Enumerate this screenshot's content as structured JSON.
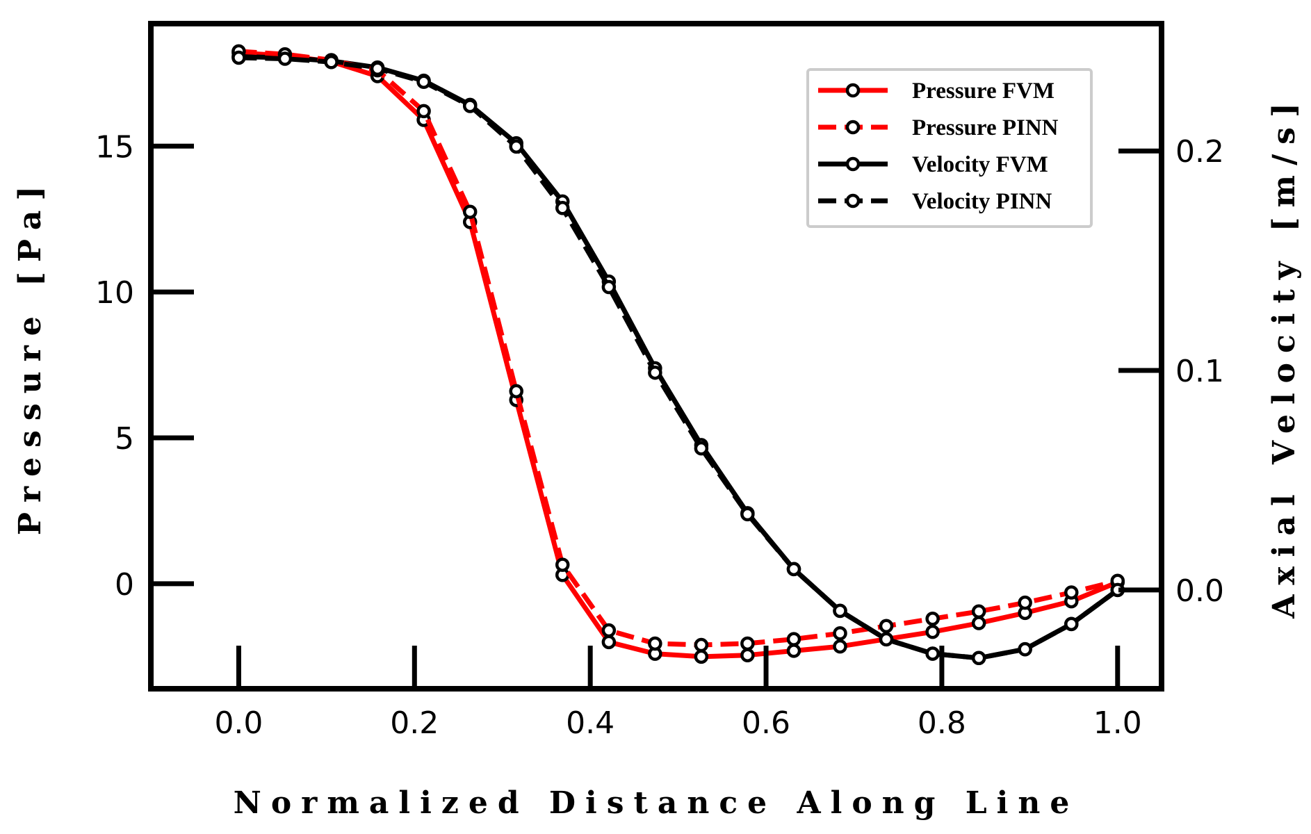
{
  "chart_data": {
    "type": "line",
    "xlabel": "Normalized Distance Along Line",
    "ylabel_left": "Pressure [Pa]",
    "ylabel_right": "Axial Velocity [m/s]",
    "xlim": [
      -0.1,
      1.05
    ],
    "ylim_left": [
      -3.6,
      19.2
    ],
    "ylim_right": [
      -0.045,
      0.258
    ],
    "x_ticks": [
      0.0,
      0.2,
      0.4,
      0.6,
      0.8,
      1.0
    ],
    "x_tick_labels": [
      "0.0",
      "0.2",
      "0.4",
      "0.6",
      "0.8",
      "1.0"
    ],
    "y_left_ticks": [
      0,
      5,
      10,
      15
    ],
    "y_left_tick_labels": [
      "0",
      "5",
      "10",
      "15"
    ],
    "y_right_ticks": [
      0.0,
      0.1,
      0.2
    ],
    "y_right_tick_labels": [
      "0.0",
      "0.1",
      "0.2"
    ],
    "grid": false,
    "legend_position": "top-right",
    "x": [
      0.0,
      0.0526,
      0.1053,
      0.1579,
      0.2105,
      0.2632,
      0.3158,
      0.3684,
      0.4211,
      0.4737,
      0.5263,
      0.5789,
      0.6316,
      0.6842,
      0.7368,
      0.7895,
      0.8421,
      0.8947,
      0.9474,
      1.0
    ],
    "series": [
      {
        "name": "Pressure FVM",
        "axis": "left",
        "color": "#ff0000",
        "dash": "solid",
        "values": [
          18.2,
          18.1,
          17.9,
          17.4,
          15.9,
          12.4,
          6.3,
          0.3,
          -2.0,
          -2.4,
          -2.5,
          -2.45,
          -2.3,
          -2.15,
          -1.9,
          -1.65,
          -1.35,
          -1.0,
          -0.6,
          0.05
        ]
      },
      {
        "name": "Pressure PINN",
        "axis": "left",
        "color": "#ff0000",
        "dash": "dashed",
        "values": [
          18.25,
          18.15,
          17.95,
          17.6,
          16.2,
          12.75,
          6.6,
          0.65,
          -1.6,
          -2.05,
          -2.1,
          -2.05,
          -1.9,
          -1.7,
          -1.45,
          -1.2,
          -0.95,
          -0.65,
          -0.3,
          0.1
        ]
      },
      {
        "name": "Velocity FVM",
        "axis": "right",
        "color": "#000000",
        "dash": "solid",
        "values": [
          0.243,
          0.2425,
          0.241,
          0.238,
          0.232,
          0.221,
          0.2035,
          0.177,
          0.1405,
          0.101,
          0.066,
          0.035,
          0.0095,
          -0.0095,
          -0.0225,
          -0.029,
          -0.031,
          -0.027,
          -0.0155,
          0.0
        ]
      },
      {
        "name": "Velocity PINN",
        "axis": "right",
        "color": "#000000",
        "dash": "dashed",
        "values": [
          0.2425,
          0.242,
          0.2405,
          0.2375,
          0.2315,
          0.2205,
          0.202,
          0.174,
          0.138,
          0.099,
          0.0645,
          0.0345,
          0.0095,
          -0.0095,
          -0.0225,
          -0.029,
          -0.031,
          -0.027,
          -0.0155,
          0.0
        ]
      }
    ]
  }
}
